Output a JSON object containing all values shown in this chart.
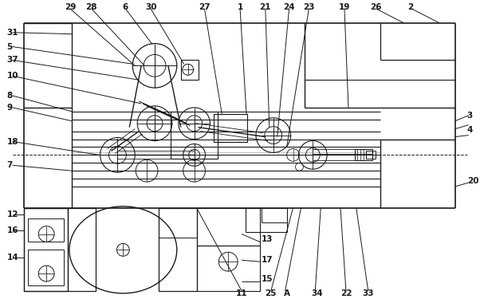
{
  "bg_color": "#ffffff",
  "line_color": "#1a1a1a",
  "fig_width": 6.02,
  "fig_height": 3.75,
  "dpi": 100
}
